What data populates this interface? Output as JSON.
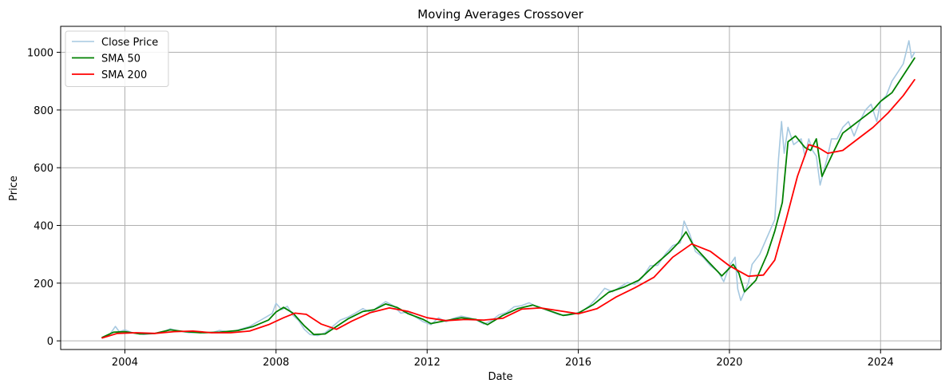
{
  "chart_data": {
    "type": "line",
    "title": "Moving Averages Crossover",
    "xlabel": "Date",
    "ylabel": "Price",
    "x_range": [
      2002.3,
      2025.6
    ],
    "ylim": [
      -30,
      1090
    ],
    "x_ticks": [
      2004,
      2008,
      2012,
      2016,
      2020,
      2024
    ],
    "y_ticks": [
      0,
      200,
      400,
      600,
      800,
      1000
    ],
    "grid": true,
    "legend_position": "top-left",
    "series": [
      {
        "name": "Close Price",
        "color": "#a6c8e0",
        "width": 1.6,
        "points": [
          [
            2003.4,
            10
          ],
          [
            2003.6,
            22
          ],
          [
            2003.75,
            50
          ],
          [
            2003.85,
            32
          ],
          [
            2004.0,
            38
          ],
          [
            2004.2,
            28
          ],
          [
            2004.5,
            22
          ],
          [
            2004.8,
            26
          ],
          [
            2005.0,
            30
          ],
          [
            2005.2,
            42
          ],
          [
            2005.4,
            35
          ],
          [
            2005.7,
            28
          ],
          [
            2006.0,
            30
          ],
          [
            2006.3,
            28
          ],
          [
            2006.5,
            36
          ],
          [
            2006.8,
            30
          ],
          [
            2007.0,
            38
          ],
          [
            2007.3,
            50
          ],
          [
            2007.6,
            72
          ],
          [
            2007.9,
            95
          ],
          [
            2008.0,
            130
          ],
          [
            2008.15,
            108
          ],
          [
            2008.3,
            120
          ],
          [
            2008.45,
            88
          ],
          [
            2008.6,
            70
          ],
          [
            2008.75,
            40
          ],
          [
            2008.9,
            22
          ],
          [
            2009.1,
            18
          ],
          [
            2009.3,
            28
          ],
          [
            2009.5,
            50
          ],
          [
            2009.7,
            72
          ],
          [
            2009.9,
            82
          ],
          [
            2010.1,
            96
          ],
          [
            2010.3,
            112
          ],
          [
            2010.5,
            98
          ],
          [
            2010.7,
            118
          ],
          [
            2010.9,
            136
          ],
          [
            2011.1,
            122
          ],
          [
            2011.3,
            96
          ],
          [
            2011.5,
            100
          ],
          [
            2011.7,
            82
          ],
          [
            2011.9,
            66
          ],
          [
            2012.1,
            56
          ],
          [
            2012.3,
            80
          ],
          [
            2012.5,
            66
          ],
          [
            2012.7,
            78
          ],
          [
            2012.9,
            86
          ],
          [
            2013.1,
            80
          ],
          [
            2013.3,
            72
          ],
          [
            2013.5,
            58
          ],
          [
            2013.7,
            70
          ],
          [
            2013.9,
            90
          ],
          [
            2014.1,
            98
          ],
          [
            2014.3,
            118
          ],
          [
            2014.5,
            122
          ],
          [
            2014.7,
            132
          ],
          [
            2014.9,
            118
          ],
          [
            2015.1,
            110
          ],
          [
            2015.3,
            100
          ],
          [
            2015.5,
            90
          ],
          [
            2015.7,
            88
          ],
          [
            2015.9,
            94
          ],
          [
            2016.1,
            102
          ],
          [
            2016.3,
            122
          ],
          [
            2016.5,
            150
          ],
          [
            2016.7,
            182
          ],
          [
            2016.9,
            170
          ],
          [
            2017.1,
            186
          ],
          [
            2017.3,
            202
          ],
          [
            2017.5,
            196
          ],
          [
            2017.7,
            220
          ],
          [
            2017.9,
            260
          ],
          [
            2018.1,
            262
          ],
          [
            2018.3,
            300
          ],
          [
            2018.5,
            330
          ],
          [
            2018.7,
            340
          ],
          [
            2018.8,
            415
          ],
          [
            2018.95,
            370
          ],
          [
            2019.1,
            310
          ],
          [
            2019.3,
            290
          ],
          [
            2019.5,
            260
          ],
          [
            2019.7,
            240
          ],
          [
            2019.85,
            205
          ],
          [
            2020.0,
            260
          ],
          [
            2020.15,
            290
          ],
          [
            2020.22,
            180
          ],
          [
            2020.3,
            140
          ],
          [
            2020.4,
            170
          ],
          [
            2020.5,
            200
          ],
          [
            2020.6,
            265
          ],
          [
            2020.8,
            300
          ],
          [
            2021.0,
            360
          ],
          [
            2021.2,
            420
          ],
          [
            2021.3,
            630
          ],
          [
            2021.38,
            760
          ],
          [
            2021.45,
            650
          ],
          [
            2021.55,
            740
          ],
          [
            2021.7,
            680
          ],
          [
            2021.9,
            700
          ],
          [
            2022.0,
            640
          ],
          [
            2022.1,
            700
          ],
          [
            2022.2,
            660
          ],
          [
            2022.3,
            640
          ],
          [
            2022.4,
            540
          ],
          [
            2022.5,
            590
          ],
          [
            2022.6,
            640
          ],
          [
            2022.7,
            700
          ],
          [
            2022.85,
            700
          ],
          [
            2023.0,
            740
          ],
          [
            2023.15,
            760
          ],
          [
            2023.3,
            710
          ],
          [
            2023.45,
            760
          ],
          [
            2023.6,
            800
          ],
          [
            2023.75,
            820
          ],
          [
            2023.9,
            760
          ],
          [
            2024.0,
            830
          ],
          [
            2024.15,
            850
          ],
          [
            2024.3,
            900
          ],
          [
            2024.45,
            930
          ],
          [
            2024.6,
            960
          ],
          [
            2024.75,
            1040
          ],
          [
            2024.82,
            980
          ],
          [
            2024.9,
            1000
          ]
        ]
      },
      {
        "name": "SMA 50",
        "color": "#008000",
        "width": 1.8,
        "points": [
          [
            2003.4,
            12
          ],
          [
            2003.7,
            30
          ],
          [
            2004.0,
            32
          ],
          [
            2004.4,
            24
          ],
          [
            2004.8,
            26
          ],
          [
            2005.2,
            38
          ],
          [
            2005.6,
            32
          ],
          [
            2006.0,
            28
          ],
          [
            2006.5,
            30
          ],
          [
            2007.0,
            36
          ],
          [
            2007.4,
            50
          ],
          [
            2007.8,
            72
          ],
          [
            2008.0,
            100
          ],
          [
            2008.2,
            116
          ],
          [
            2008.45,
            96
          ],
          [
            2008.75,
            52
          ],
          [
            2009.0,
            22
          ],
          [
            2009.3,
            24
          ],
          [
            2009.6,
            50
          ],
          [
            2009.9,
            76
          ],
          [
            2010.3,
            102
          ],
          [
            2010.6,
            108
          ],
          [
            2010.9,
            128
          ],
          [
            2011.2,
            116
          ],
          [
            2011.5,
            94
          ],
          [
            2011.9,
            74
          ],
          [
            2012.1,
            60
          ],
          [
            2012.5,
            70
          ],
          [
            2012.9,
            80
          ],
          [
            2013.3,
            74
          ],
          [
            2013.6,
            56
          ],
          [
            2014.0,
            88
          ],
          [
            2014.4,
            112
          ],
          [
            2014.8,
            124
          ],
          [
            2015.2,
            106
          ],
          [
            2015.6,
            88
          ],
          [
            2016.0,
            96
          ],
          [
            2016.4,
            126
          ],
          [
            2016.8,
            168
          ],
          [
            2017.2,
            186
          ],
          [
            2017.6,
            210
          ],
          [
            2018.0,
            260
          ],
          [
            2018.4,
            306
          ],
          [
            2018.65,
            340
          ],
          [
            2018.85,
            378
          ],
          [
            2019.05,
            330
          ],
          [
            2019.4,
            280
          ],
          [
            2019.8,
            225
          ],
          [
            2020.1,
            265
          ],
          [
            2020.25,
            235
          ],
          [
            2020.4,
            170
          ],
          [
            2020.7,
            210
          ],
          [
            2021.0,
            300
          ],
          [
            2021.2,
            380
          ],
          [
            2021.4,
            480
          ],
          [
            2021.55,
            690
          ],
          [
            2021.75,
            710
          ],
          [
            2022.0,
            670
          ],
          [
            2022.15,
            660
          ],
          [
            2022.3,
            700
          ],
          [
            2022.45,
            570
          ],
          [
            2022.7,
            640
          ],
          [
            2023.0,
            720
          ],
          [
            2023.2,
            740
          ],
          [
            2023.5,
            770
          ],
          [
            2023.8,
            800
          ],
          [
            2024.0,
            830
          ],
          [
            2024.3,
            860
          ],
          [
            2024.6,
            920
          ],
          [
            2024.9,
            980
          ]
        ]
      },
      {
        "name": "SMA 200",
        "color": "#ff0000",
        "width": 1.8,
        "points": [
          [
            2003.4,
            10
          ],
          [
            2003.8,
            26
          ],
          [
            2004.3,
            28
          ],
          [
            2004.8,
            26
          ],
          [
            2005.3,
            32
          ],
          [
            2005.8,
            34
          ],
          [
            2006.3,
            28
          ],
          [
            2006.8,
            28
          ],
          [
            2007.3,
            34
          ],
          [
            2007.8,
            56
          ],
          [
            2008.2,
            80
          ],
          [
            2008.5,
            96
          ],
          [
            2008.8,
            92
          ],
          [
            2009.2,
            58
          ],
          [
            2009.6,
            40
          ],
          [
            2010.0,
            68
          ],
          [
            2010.5,
            98
          ],
          [
            2011.0,
            114
          ],
          [
            2011.5,
            102
          ],
          [
            2012.0,
            80
          ],
          [
            2012.5,
            70
          ],
          [
            2013.0,
            74
          ],
          [
            2013.5,
            72
          ],
          [
            2014.0,
            78
          ],
          [
            2014.5,
            110
          ],
          [
            2015.0,
            114
          ],
          [
            2015.5,
            104
          ],
          [
            2016.0,
            94
          ],
          [
            2016.5,
            112
          ],
          [
            2017.0,
            152
          ],
          [
            2017.5,
            184
          ],
          [
            2018.0,
            220
          ],
          [
            2018.5,
            290
          ],
          [
            2019.0,
            336
          ],
          [
            2019.5,
            310
          ],
          [
            2020.0,
            260
          ],
          [
            2020.5,
            224
          ],
          [
            2020.9,
            228
          ],
          [
            2021.2,
            280
          ],
          [
            2021.5,
            420
          ],
          [
            2021.8,
            570
          ],
          [
            2022.1,
            680
          ],
          [
            2022.35,
            670
          ],
          [
            2022.6,
            650
          ],
          [
            2023.0,
            660
          ],
          [
            2023.4,
            700
          ],
          [
            2023.8,
            740
          ],
          [
            2024.2,
            790
          ],
          [
            2024.6,
            850
          ],
          [
            2024.9,
            905
          ]
        ]
      }
    ]
  }
}
